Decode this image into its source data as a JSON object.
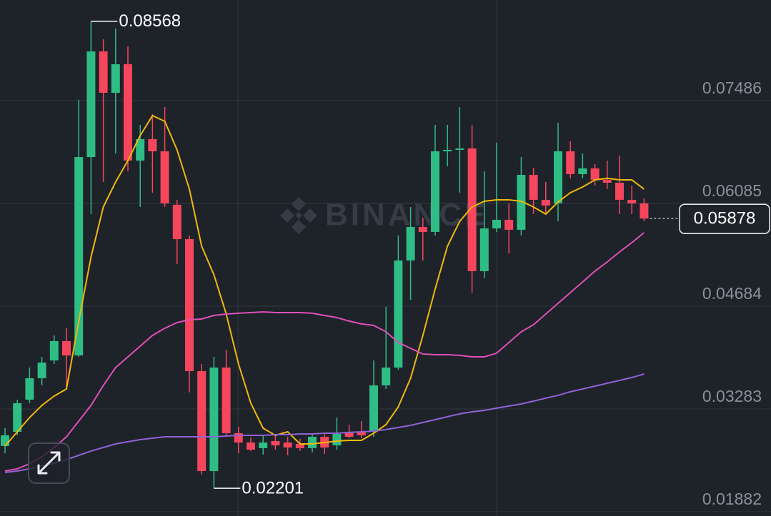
{
  "chart_data": {
    "type": "candlestick",
    "watermark": "BINANCE",
    "up_color": "#2ebd85",
    "down_color": "#f6465d",
    "open": [
      0.02777,
      0.02971,
      0.03409,
      0.03701,
      0.03944,
      0.04207,
      0.04012,
      0.06717,
      0.08157,
      0.07593,
      0.07982,
      0.06669,
      0.06961,
      0.06795,
      0.06066,
      0.05598,
      0.03798,
      0.02436,
      0.03847,
      0.02952,
      0.02825,
      0.02748,
      0.02845,
      0.02825,
      0.02806,
      0.02748,
      0.02903,
      0.02786,
      0.02971,
      0.02971,
      0.02971,
      0.03604,
      0.03847,
      0.05307,
      0.05764,
      0.05696,
      0.06795,
      0.06815,
      0.06834,
      0.05161,
      0.05744,
      0.05861,
      0.05725,
      0.06474,
      0.06134,
      0.06085,
      0.06795,
      0.06484,
      0.06562,
      0.06406,
      0.06367,
      0.06134,
      0.06085
    ],
    "high": [
      0.0302,
      0.03409,
      0.03847,
      0.03993,
      0.04285,
      0.04382,
      0.07496,
      0.08568,
      0.08323,
      0.08469,
      0.08226,
      0.07155,
      0.07301,
      0.07398,
      0.06134,
      0.05647,
      0.03896,
      0.03993,
      0.0409,
      0.0304,
      0.02893,
      0.02923,
      0.02942,
      0.02903,
      0.02874,
      0.02942,
      0.02962,
      0.03166,
      0.03069,
      0.03117,
      0.03944,
      0.04674,
      0.05647,
      0.06036,
      0.0589,
      0.07155,
      0.07155,
      0.07398,
      0.07155,
      0.06523,
      0.06912,
      0.06085,
      0.06717,
      0.06571,
      0.06377,
      0.07184,
      0.06931,
      0.06766,
      0.0662,
      0.06669,
      0.06737,
      0.06328,
      0.06153
    ],
    "low": [
      0.02679,
      0.02923,
      0.03361,
      0.03604,
      0.03896,
      0.03555,
      0.03993,
      0.05939,
      0.06377,
      0.06766,
      0.06523,
      0.06036,
      0.06231,
      0.06036,
      0.05258,
      0.03507,
      0.02388,
      0.02201,
      0.02903,
      0.02679,
      0.02709,
      0.0266,
      0.02728,
      0.0265,
      0.02709,
      0.02689,
      0.0267,
      0.02728,
      0.02884,
      0.02884,
      0.02903,
      0.03555,
      0.03818,
      0.04771,
      0.05307,
      0.05647,
      0.06591,
      0.06231,
      0.04869,
      0.05063,
      0.05696,
      0.05404,
      0.05647,
      0.05939,
      0.05939,
      0.05842,
      0.06426,
      0.06426,
      0.06328,
      0.0628,
      0.05939,
      0.05939,
      0.05842
    ],
    "close": [
      0.02923,
      0.03361,
      0.03701,
      0.03915,
      0.04207,
      0.04012,
      0.06717,
      0.08157,
      0.07593,
      0.07982,
      0.06669,
      0.06961,
      0.06795,
      0.06085,
      0.05598,
      0.03798,
      0.02436,
      0.03847,
      0.02952,
      0.02825,
      0.02728,
      0.02825,
      0.02786,
      0.02757,
      0.02748,
      0.02903,
      0.02757,
      0.02942,
      0.02903,
      0.02923,
      0.03604,
      0.03847,
      0.05307,
      0.05764,
      0.05696,
      0.06795,
      0.06815,
      0.06834,
      0.05161,
      0.05744,
      0.05861,
      0.05725,
      0.06474,
      0.06134,
      0.06056,
      0.06795,
      0.06484,
      0.06562,
      0.06406,
      0.06367,
      0.06134,
      0.06085,
      0.05878
    ],
    "lines": [
      {
        "color": "#f0b90b",
        "values": [
          0.02777,
          0.02971,
          0.03166,
          0.03331,
          0.03458,
          0.03555,
          0.0448,
          0.05355,
          0.06036,
          0.06377,
          0.06669,
          0.07009,
          0.07282,
          0.07204,
          0.06815,
          0.0628,
          0.05501,
          0.05112,
          0.04577,
          0.03896,
          0.03361,
          0.0302,
          0.02923,
          0.02971,
          0.02806,
          0.02806,
          0.02825,
          0.02845,
          0.02854,
          0.02854,
          0.02952,
          0.03069,
          0.03312,
          0.03701,
          0.04285,
          0.04917,
          0.05501,
          0.05842,
          0.06036,
          0.06114,
          0.06134,
          0.06134,
          0.06114,
          0.06036,
          0.05939,
          0.06104,
          0.06231,
          0.06309,
          0.06406,
          0.06426,
          0.06406,
          0.06406,
          0.0628
        ]
      },
      {
        "color": "#e04fb8",
        "values": [
          0.02436,
          0.02466,
          0.02534,
          0.02631,
          0.02757,
          0.02903,
          0.03117,
          0.03331,
          0.03604,
          0.03847,
          0.03993,
          0.04139,
          0.04285,
          0.04382,
          0.0446,
          0.04499,
          0.04509,
          0.04557,
          0.04577,
          0.04587,
          0.04596,
          0.04606,
          0.04596,
          0.04596,
          0.04596,
          0.04587,
          0.04557,
          0.04528,
          0.0448,
          0.04441,
          0.04421,
          0.04334,
          0.04188,
          0.0411,
          0.04032,
          0.04022,
          0.04022,
          0.04013,
          0.03993,
          0.03993,
          0.04042,
          0.04188,
          0.04334,
          0.04431,
          0.04577,
          0.04723,
          0.04869,
          0.05015,
          0.05161,
          0.05287,
          0.05423,
          0.0555,
          0.05686
        ]
      },
      {
        "color": "#8e63d6",
        "values": [
          0.02417,
          0.02436,
          0.02466,
          0.02504,
          0.02543,
          0.02592,
          0.0265,
          0.02709,
          0.02757,
          0.02806,
          0.02835,
          0.02864,
          0.02884,
          0.02903,
          0.02903,
          0.02903,
          0.02903,
          0.02903,
          0.02913,
          0.02923,
          0.02923,
          0.02923,
          0.02932,
          0.02932,
          0.02942,
          0.02942,
          0.02952,
          0.02952,
          0.02962,
          0.02971,
          0.02981,
          0.03001,
          0.0303,
          0.03059,
          0.03098,
          0.03137,
          0.03176,
          0.03215,
          0.03244,
          0.03263,
          0.03293,
          0.03322,
          0.03351,
          0.0339,
          0.03429,
          0.03468,
          0.03517,
          0.03555,
          0.03594,
          0.03633,
          0.03672,
          0.03711,
          0.03759
        ]
      }
    ],
    "max_price": 0.08568,
    "min_price": 0.02201,
    "last_price": 0.05878,
    "ylim": [
      0.01823,
      0.08858
    ],
    "yticks": [
      0.07486,
      0.06085,
      0.04684,
      0.03283,
      0.01882
    ],
    "grid": true
  }
}
